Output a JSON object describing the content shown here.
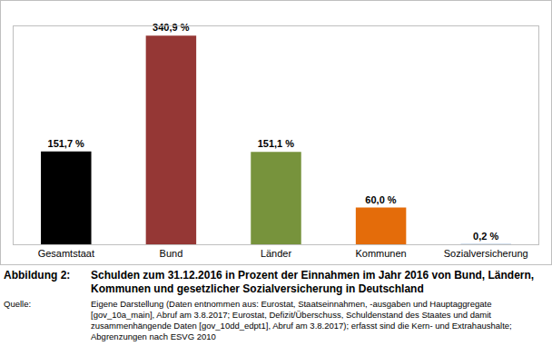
{
  "chart_data": {
    "type": "bar",
    "title": "Schulden zum 31.12.2016 in Prozent der Einnahmen im Jahr 2016 von Bund, Ländern, Kommunen und gesetzlicher Sozialversicherung in Deutschland",
    "categories": [
      "Gesamtstaat",
      "Bund",
      "Länder",
      "Kommunen",
      "Sozialversicherung"
    ],
    "values": [
      151.7,
      340.9,
      151.1,
      60.0,
      0.2
    ],
    "value_labels": [
      "151,7 %",
      "340,9 %",
      "151,1 %",
      "60,0 %",
      "0,2 %"
    ],
    "colors": [
      "#000000",
      "#953735",
      "#77933c",
      "#e46c0a",
      "#4f81bd"
    ],
    "ylim": [
      0,
      356
    ],
    "yticks": [],
    "grid": false,
    "data_labels": true,
    "tick_labels": "x"
  },
  "figure_label": "Abbildung 2:",
  "source_label": "Quelle:",
  "source": "Eigene Darstellung (Daten entnommen aus: Eurostat, Staatseinnahmen, -ausgaben und Hauptaggregate [gov_10a_main], Abruf am 3.8.2017; Eurostat, Defizit/Überschuss, Schuldenstand des Staates und damit zusammenhängende Daten [gov_10dd_edpt1], Abruf am 3.8.2017); erfasst sind die Kern- und Extrahaushalte; Abgrenzungen nach ESVG 2010"
}
